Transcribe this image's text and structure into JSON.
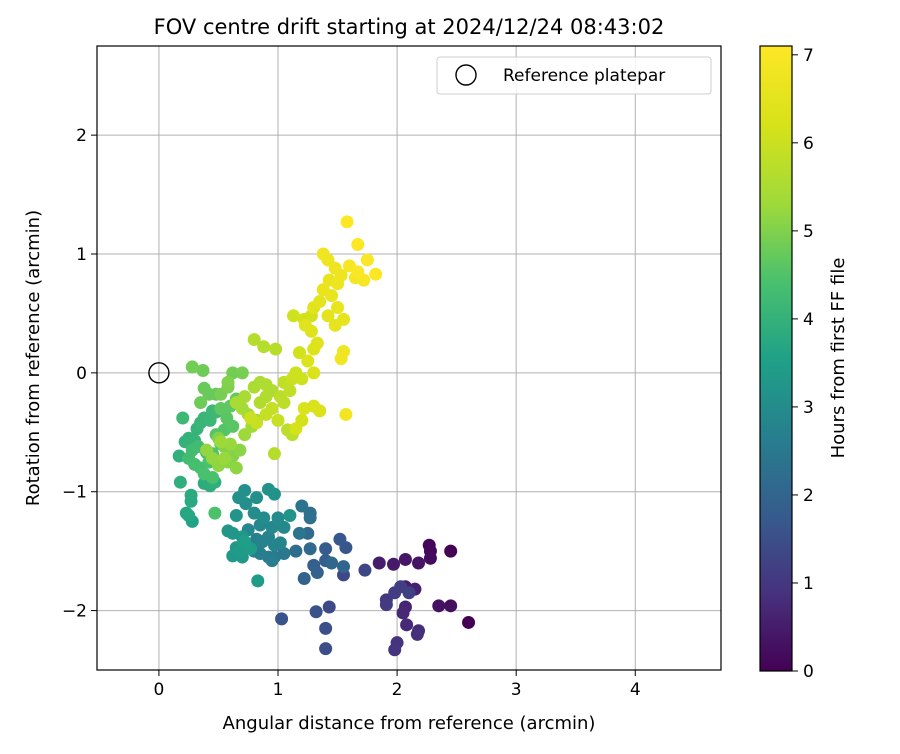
{
  "chart_data": {
    "type": "scatter",
    "title": "FOV centre drift starting at 2024/12/24 08:43:02",
    "xlabel": "Angular distance from reference (arcmin)",
    "ylabel": "Rotation from reference (arcmin)",
    "xlim": [
      -0.52,
      4.72
    ],
    "ylim": [
      -2.5,
      2.75
    ],
    "xticks": [
      "0",
      "1",
      "2",
      "3",
      "4"
    ],
    "xtick_values": [
      0,
      1,
      2,
      3,
      4
    ],
    "yticks": [
      "−2",
      "−1",
      "0",
      "1",
      "2"
    ],
    "ytick_values": [
      -2,
      -1,
      0,
      1,
      2
    ],
    "grid": true,
    "legend": {
      "placement": "top-right",
      "label": "Reference platepar"
    },
    "reference_point": {
      "x": 0,
      "y": 0
    },
    "colorbar": {
      "label": "Hours from first FF file",
      "range": [
        0,
        7.1
      ],
      "ticks": [
        "0",
        "1",
        "2",
        "3",
        "4",
        "5",
        "6",
        "7"
      ],
      "tick_values": [
        0,
        1,
        2,
        3,
        4,
        5,
        6,
        7
      ],
      "colormap": "viridis"
    },
    "series": [
      {
        "points": [
          [
            2.6,
            -2.1,
            0.0
          ],
          [
            2.45,
            -1.5,
            0.05
          ],
          [
            2.27,
            -1.45,
            0.1
          ],
          [
            2.28,
            -1.5,
            0.15
          ],
          [
            2.28,
            -1.56,
            0.2
          ],
          [
            2.45,
            -1.96,
            0.25
          ],
          [
            2.35,
            -1.96,
            0.3
          ],
          [
            2.18,
            -1.6,
            0.35
          ],
          [
            2.07,
            -1.57,
            0.4
          ],
          [
            1.97,
            -1.61,
            0.45
          ],
          [
            1.85,
            -1.6,
            0.5
          ],
          [
            2.07,
            -1.8,
            0.55
          ],
          [
            2.15,
            -1.82,
            0.6
          ],
          [
            2.07,
            -1.97,
            0.65
          ],
          [
            2.05,
            -2.02,
            0.7
          ],
          [
            2.08,
            -2.12,
            0.75
          ],
          [
            2.18,
            -2.17,
            0.8
          ],
          [
            2.17,
            -2.2,
            0.85
          ],
          [
            2.0,
            -2.27,
            0.9
          ],
          [
            1.98,
            -2.33,
            0.95
          ],
          [
            1.91,
            -1.91,
            1.0
          ],
          [
            1.91,
            -1.95,
            1.05
          ],
          [
            1.98,
            -1.85,
            1.1
          ],
          [
            2.03,
            -1.8,
            1.15
          ],
          [
            2.1,
            -1.85,
            1.2
          ],
          [
            1.73,
            -1.66,
            1.3
          ],
          [
            1.55,
            -1.7,
            1.35
          ],
          [
            1.43,
            -1.97,
            1.4
          ],
          [
            1.4,
            -2.32,
            1.45
          ],
          [
            1.4,
            -2.15,
            1.5
          ],
          [
            1.32,
            -2.01,
            1.55
          ],
          [
            1.03,
            -2.07,
            1.6
          ],
          [
            1.57,
            -1.47,
            1.65
          ],
          [
            1.52,
            -1.4,
            1.7
          ],
          [
            1.4,
            -1.48,
            1.75
          ],
          [
            1.4,
            -1.58,
            1.8
          ],
          [
            1.3,
            -1.62,
            1.85
          ],
          [
            1.33,
            -1.68,
            1.9
          ],
          [
            1.22,
            -1.73,
            1.95
          ],
          [
            1.55,
            -1.63,
            2.0
          ],
          [
            1.45,
            -1.6,
            2.05
          ],
          [
            1.27,
            -1.48,
            2.1
          ],
          [
            1.25,
            -1.35,
            2.15
          ],
          [
            1.15,
            -1.5,
            2.2
          ],
          [
            1.27,
            -1.18,
            2.25
          ],
          [
            1.27,
            -1.22,
            2.3
          ],
          [
            1.2,
            -1.12,
            2.35
          ],
          [
            1.18,
            -1.35,
            2.4
          ],
          [
            1.05,
            -1.52,
            2.45
          ],
          [
            0.97,
            -1.55,
            2.5
          ],
          [
            0.92,
            -1.55,
            2.55
          ],
          [
            0.95,
            -1.58,
            2.6
          ],
          [
            0.85,
            -1.52,
            2.6
          ],
          [
            0.8,
            -1.5,
            2.65
          ],
          [
            0.75,
            -1.45,
            2.7
          ],
          [
            0.82,
            -1.4,
            2.7
          ],
          [
            0.87,
            -1.42,
            2.75
          ],
          [
            0.92,
            -1.38,
            2.75
          ],
          [
            0.97,
            -1.45,
            2.8
          ],
          [
            1.02,
            -1.43,
            2.8
          ],
          [
            0.75,
            -1.32,
            2.85
          ],
          [
            0.85,
            -1.28,
            2.85
          ],
          [
            0.95,
            -1.3,
            2.9
          ],
          [
            1.05,
            -1.3,
            2.9
          ],
          [
            1.0,
            -1.22,
            2.95
          ],
          [
            0.88,
            -1.22,
            3.0
          ],
          [
            0.8,
            -1.18,
            3.0
          ],
          [
            0.73,
            -1.1,
            3.05
          ],
          [
            0.82,
            -1.05,
            3.05
          ],
          [
            0.67,
            -1.05,
            3.1
          ],
          [
            0.72,
            -0.99,
            3.1
          ],
          [
            0.92,
            -0.98,
            3.15
          ],
          [
            0.97,
            -1.02,
            3.15
          ],
          [
            1.1,
            -1.2,
            3.2
          ],
          [
            0.65,
            -1.2,
            3.2
          ],
          [
            0.62,
            -1.35,
            3.25
          ],
          [
            0.58,
            -1.33,
            3.25
          ],
          [
            0.7,
            -1.38,
            3.3
          ],
          [
            0.65,
            -1.47,
            3.3
          ],
          [
            0.62,
            -1.54,
            3.35
          ],
          [
            0.7,
            -1.55,
            3.35
          ],
          [
            0.68,
            -1.5,
            3.4
          ],
          [
            0.83,
            -1.75,
            3.4
          ],
          [
            0.77,
            -1.48,
            3.45
          ],
          [
            0.72,
            -1.42,
            3.5
          ],
          [
            0.28,
            -1.25,
            3.6
          ],
          [
            0.25,
            -1.2,
            3.65
          ],
          [
            0.23,
            -1.18,
            3.7
          ],
          [
            0.27,
            -1.08,
            3.75
          ],
          [
            0.27,
            -1.03,
            3.8
          ],
          [
            0.38,
            -0.93,
            3.85
          ],
          [
            0.43,
            -0.95,
            3.85
          ],
          [
            0.47,
            -0.92,
            3.9
          ],
          [
            0.18,
            -0.92,
            3.9
          ],
          [
            0.17,
            -0.7,
            3.95
          ],
          [
            0.22,
            -0.58,
            4.0
          ],
          [
            0.25,
            -0.55,
            4.0
          ],
          [
            0.3,
            -0.57,
            4.05
          ],
          [
            0.32,
            -0.47,
            4.05
          ],
          [
            0.35,
            -0.42,
            4.1
          ],
          [
            0.38,
            -0.38,
            4.1
          ],
          [
            0.43,
            -0.4,
            4.15
          ],
          [
            0.45,
            -0.32,
            4.15
          ],
          [
            0.48,
            -0.33,
            4.2
          ],
          [
            0.2,
            -0.38,
            4.2
          ],
          [
            0.33,
            -0.62,
            4.25
          ],
          [
            0.4,
            -0.67,
            4.25
          ],
          [
            0.28,
            -0.65,
            4.3
          ],
          [
            0.25,
            -0.72,
            4.3
          ],
          [
            0.3,
            -0.77,
            4.35
          ],
          [
            0.35,
            -0.8,
            4.35
          ],
          [
            0.38,
            -0.85,
            4.4
          ],
          [
            0.45,
            -0.88,
            4.4
          ],
          [
            0.47,
            -1.18,
            4.45
          ],
          [
            0.42,
            -0.75,
            4.45
          ],
          [
            0.45,
            -0.68,
            4.5
          ],
          [
            0.52,
            -0.6,
            4.5
          ],
          [
            0.48,
            -0.52,
            4.55
          ],
          [
            0.55,
            -0.48,
            4.55
          ],
          [
            0.62,
            -0.45,
            4.6
          ],
          [
            0.57,
            -0.38,
            4.6
          ],
          [
            0.52,
            -0.3,
            4.65
          ],
          [
            0.6,
            -0.28,
            4.65
          ],
          [
            0.65,
            -0.22,
            4.7
          ],
          [
            0.48,
            -0.18,
            4.7
          ],
          [
            0.42,
            -0.18,
            4.75
          ],
          [
            0.38,
            -0.13,
            4.75
          ],
          [
            0.35,
            -0.25,
            4.8
          ],
          [
            0.37,
            0.02,
            4.8
          ],
          [
            0.28,
            0.05,
            4.85
          ],
          [
            0.62,
            0.0,
            4.85
          ],
          [
            0.7,
            0.0,
            4.9
          ],
          [
            0.52,
            -0.18,
            4.9
          ],
          [
            0.58,
            -0.12,
            4.95
          ],
          [
            0.58,
            -0.08,
            5.0
          ],
          [
            0.5,
            -0.55,
            5.0
          ],
          [
            0.55,
            -0.62,
            5.05
          ],
          [
            0.62,
            -0.7,
            5.05
          ],
          [
            0.68,
            -0.65,
            5.1
          ],
          [
            0.58,
            -0.75,
            5.1
          ],
          [
            0.65,
            -0.8,
            5.15
          ],
          [
            0.5,
            -0.78,
            5.15
          ],
          [
            0.45,
            -0.72,
            5.2
          ],
          [
            0.4,
            -0.65,
            5.2
          ],
          [
            0.55,
            -0.72,
            5.25
          ],
          [
            0.6,
            -0.6,
            5.25
          ],
          [
            0.52,
            -0.58,
            5.3
          ],
          [
            0.72,
            -0.52,
            5.3
          ],
          [
            0.78,
            -0.45,
            5.35
          ],
          [
            0.82,
            -0.4,
            5.35
          ],
          [
            0.75,
            -0.35,
            5.4
          ],
          [
            0.7,
            -0.3,
            5.4
          ],
          [
            0.65,
            -0.25,
            5.45
          ],
          [
            0.72,
            -0.2,
            5.45
          ],
          [
            0.8,
            -0.12,
            5.5
          ],
          [
            0.85,
            -0.08,
            5.5
          ],
          [
            0.9,
            -0.1,
            5.55
          ],
          [
            0.95,
            -0.15,
            5.55
          ],
          [
            0.9,
            -0.2,
            5.6
          ],
          [
            0.85,
            -0.25,
            5.6
          ],
          [
            0.8,
            0.28,
            5.65
          ],
          [
            0.88,
            0.22,
            5.65
          ],
          [
            0.98,
            0.2,
            5.7
          ],
          [
            0.97,
            -0.68,
            5.7
          ],
          [
            1.08,
            -0.48,
            5.75
          ],
          [
            1.12,
            -0.52,
            5.75
          ],
          [
            1.02,
            -0.2,
            5.8
          ],
          [
            1.05,
            -0.25,
            5.8
          ],
          [
            1.1,
            -0.15,
            5.85
          ],
          [
            1.05,
            -0.08,
            5.85
          ],
          [
            0.95,
            -0.3,
            5.9
          ],
          [
            0.9,
            -0.35,
            5.9
          ],
          [
            1.0,
            -0.4,
            5.95
          ],
          [
            0.82,
            -0.42,
            5.95
          ],
          [
            0.77,
            -0.38,
            6.0
          ],
          [
            1.12,
            -0.05,
            6.0
          ],
          [
            1.15,
            0.0,
            6.05
          ],
          [
            1.2,
            -0.05,
            6.05
          ],
          [
            1.18,
            0.17,
            6.1
          ],
          [
            1.13,
            0.48,
            6.1
          ],
          [
            1.22,
            0.45,
            6.15
          ],
          [
            1.28,
            0.48,
            6.15
          ],
          [
            1.2,
            -0.4,
            6.2
          ],
          [
            1.15,
            -0.47,
            6.2
          ],
          [
            1.22,
            -0.3,
            6.25
          ],
          [
            1.3,
            -0.28,
            6.25
          ],
          [
            1.35,
            -0.32,
            6.3
          ],
          [
            1.3,
            0.0,
            6.3
          ],
          [
            1.25,
            0.1,
            6.35
          ],
          [
            1.3,
            0.2,
            6.35
          ],
          [
            1.33,
            0.25,
            6.4
          ],
          [
            1.28,
            0.35,
            6.4
          ],
          [
            1.23,
            0.4,
            6.45
          ],
          [
            1.3,
            0.55,
            6.45
          ],
          [
            1.35,
            0.6,
            6.5
          ],
          [
            1.42,
            0.48,
            6.5
          ],
          [
            1.48,
            0.4,
            6.55
          ],
          [
            1.55,
            0.45,
            6.55
          ],
          [
            1.5,
            0.55,
            6.6
          ],
          [
            1.45,
            0.65,
            6.6
          ],
          [
            1.38,
            0.7,
            6.65
          ],
          [
            1.43,
            0.78,
            6.65
          ],
          [
            1.5,
            0.75,
            6.7
          ],
          [
            1.53,
            0.82,
            6.7
          ],
          [
            1.48,
            0.88,
            6.75
          ],
          [
            1.42,
            0.95,
            6.75
          ],
          [
            1.38,
            1.0,
            6.8
          ],
          [
            1.55,
            0.18,
            6.8
          ],
          [
            1.53,
            0.12,
            6.85
          ],
          [
            1.57,
            -0.35,
            6.85
          ],
          [
            1.65,
            0.8,
            6.9
          ],
          [
            1.72,
            0.78,
            6.95
          ],
          [
            1.6,
            0.9,
            6.95
          ],
          [
            1.67,
            0.85,
            7.0
          ],
          [
            1.75,
            0.95,
            7.0
          ],
          [
            1.82,
            0.83,
            7.05
          ],
          [
            1.67,
            1.08,
            7.05
          ],
          [
            1.58,
            1.27,
            7.1
          ]
        ]
      }
    ]
  }
}
